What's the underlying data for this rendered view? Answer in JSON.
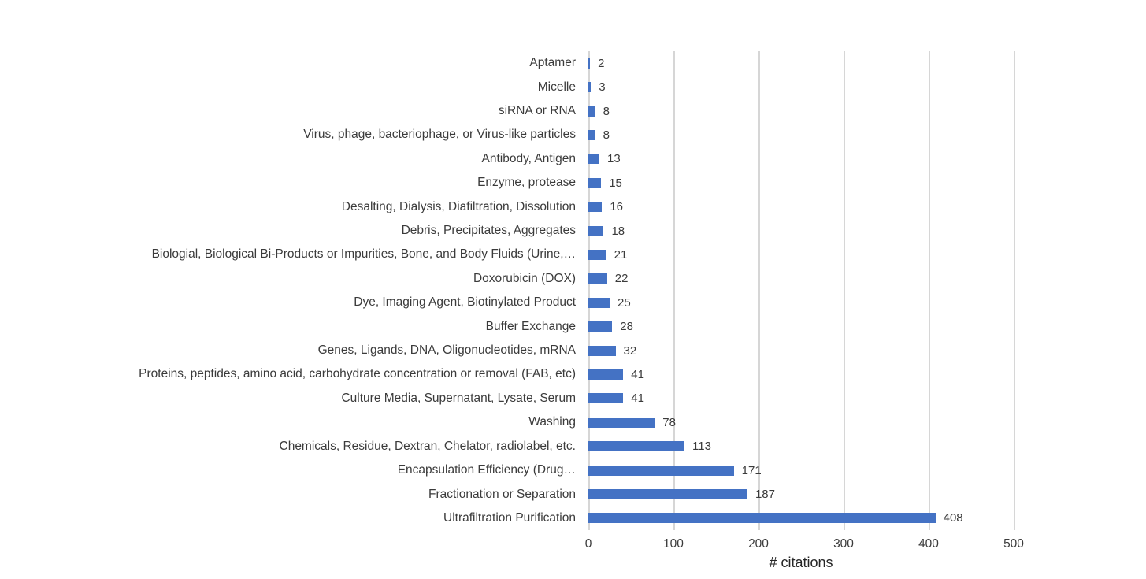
{
  "chart_data": {
    "type": "bar",
    "orientation": "horizontal",
    "title": "",
    "xlabel": "# citations",
    "ylabel": "",
    "xlim": [
      0,
      500
    ],
    "x_ticks": [
      0,
      100,
      200,
      300,
      400,
      500
    ],
    "grid": "vertical-gridlines-only",
    "legend": "none",
    "bar_color": "#4472C4",
    "gridline_color": "#D6D6D6",
    "text_color": "#3B3B3B",
    "categories": [
      "Aptamer",
      "Micelle",
      "siRNA or RNA",
      "Virus, phage, bacteriophage, or Virus-like particles",
      "Antibody, Antigen",
      "Enzyme, protease",
      "Desalting, Dialysis, Diafiltration, Dissolution",
      "Debris, Precipitates, Aggregates",
      "Biologial, Biological Bi-Products or Impurities, Bone, and Body Fluids (Urine,…",
      "Doxorubicin (DOX)",
      "Dye, Imaging Agent, Biotinylated Product",
      "Buffer Exchange",
      "Genes, Ligands, DNA, Oligonucleotides, mRNA",
      "Proteins, peptides, amino acid, carbohydrate concentration or removal (FAB, etc)",
      "Culture Media, Supernatant, Lysate, Serum",
      "Washing",
      "Chemicals, Residue, Dextran, Chelator, radiolabel, etc.",
      "Encapsulation Efficiency (Drug…",
      "Fractionation or Separation",
      "Ultrafiltration Purification"
    ],
    "values": [
      2,
      3,
      8,
      8,
      13,
      15,
      16,
      18,
      21,
      22,
      25,
      28,
      32,
      41,
      41,
      78,
      113,
      171,
      187,
      408
    ]
  }
}
